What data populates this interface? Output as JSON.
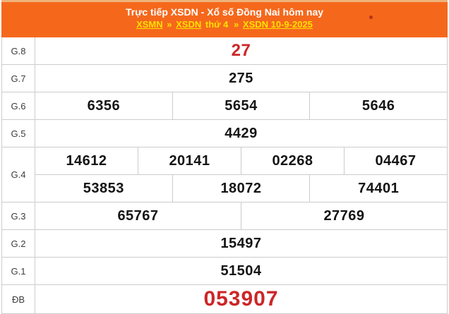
{
  "colors": {
    "header_orange": "#f5681c",
    "header_top_strip": "#eeb27b",
    "link_yellow": "#ffe000",
    "number_red": "#cc2627",
    "border_gray": "#cccccc"
  },
  "header": {
    "title": "Trực tiếp XSDN - Xổ số Đồng Nai hôm nay",
    "breadcrumb": {
      "xsmn": "XSMN",
      "sep1": "»",
      "xsdn": "XSDN",
      "middle": "thứ 4",
      "sep2": "»",
      "date_link": "XSDN 10-9-2025"
    }
  },
  "table": {
    "rows": [
      {
        "label": "G.8",
        "values": [
          "27"
        ]
      },
      {
        "label": "G.7",
        "values": [
          "275"
        ]
      },
      {
        "label": "G.6",
        "values": [
          "6356",
          "5654",
          "5646"
        ]
      },
      {
        "label": "G.5",
        "values": [
          "4429"
        ]
      },
      {
        "label": "G.4",
        "lines": [
          [
            "14612",
            "20141",
            "02268",
            "04467"
          ],
          [
            "53853",
            "18072",
            "74401"
          ]
        ]
      },
      {
        "label": "G.3",
        "values": [
          "65767",
          "27769"
        ]
      },
      {
        "label": "G.2",
        "values": [
          "15497"
        ]
      },
      {
        "label": "G.1",
        "values": [
          "51504"
        ]
      },
      {
        "label": "ĐB",
        "values": [
          "053907"
        ]
      }
    ]
  }
}
